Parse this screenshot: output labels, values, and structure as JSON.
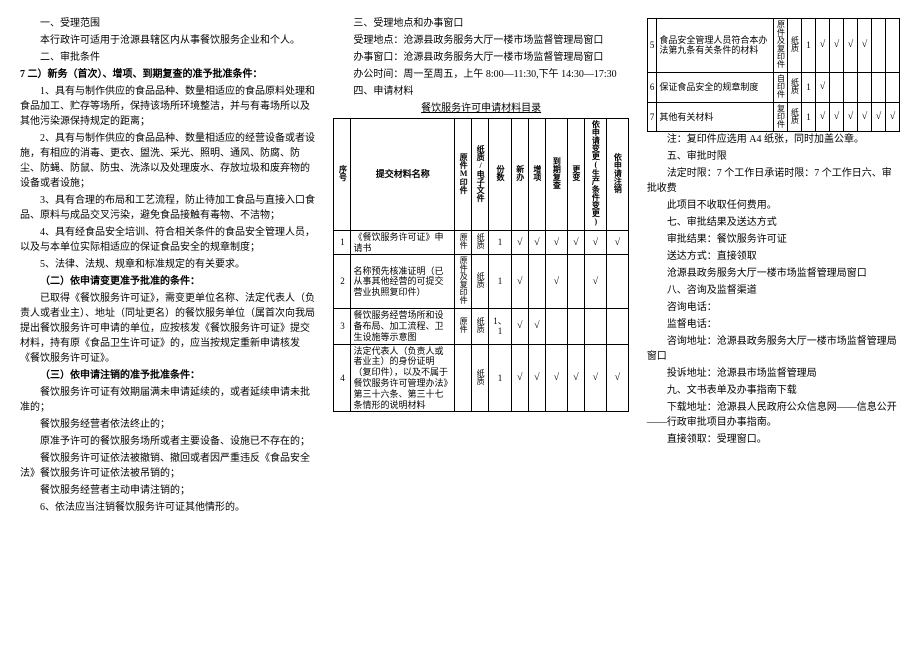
{
  "col1": {
    "h1": "一、受理范围",
    "p1": "本行政许可适用于沧源县辖区内从事餐饮服务企业和个人。",
    "h2": "二、审批条件",
    "h2b": "7 二）新务（首次）、增项、到期复查的准予批准条件：",
    "i1": "1、具有与制作供应的食品品种、数量相适应的食品原料处理和食品加工、贮存等场所，保持该场所环境整洁，并与有毒场所以及其他污染源保持规定的距离；",
    "i2": "2、具有与制作供应的食品品种、数量相适应的经营设备或者设施，有相应的消毒、更衣、盥洗、采光、照明、通风、防腐、防尘、防蝇、防鼠、防虫、洗涤以及处理废水、存放垃圾和废弃物的设备或者设施；",
    "i3": "3、具有合理的布局和工艺流程，防止待加工食品与直接入口食品、原料与成品交叉污染，避免食品接触有毒物、不洁物；",
    "i4": "4、具有经食品安全培训、符合相关条件的食品安全管理人员，以及与本单位实际相适应的保证食品安全的规章制度；",
    "i5": "5、法律、法规、规章和标准规定的有关要求。",
    "h3": "（二）依申请变更准予批准的条件：",
    "p2": "已取得《餐饮服务许可证》，需变更单位名称、法定代表人（负责人或者业主）、地址（同址更名）的餐饮服务单位（属首次向我局提出餐饮服务许可申请的单位，应按核发《餐饮服务许可证》提交材料，持有原《食品卫生许可证》的，应当按规定重新申请核发《餐饮服务许可证》。",
    "h4": "（三）依申请注销的准予批准条件：",
    "p3": "餐饮服务许可证有效期届满未申请延续的，或者延续申请未批准的；",
    "p4": "餐饮服务经营者依法终止的；",
    "p5": "原准予许可的餐饮服务场所或者主要设备、设施已不存在的；",
    "p6": "餐饮服务许可证依法被撤销、撤回或者因严重违反《食品安全法》餐饮服务许可证依法被吊销的；",
    "p7": "餐饮服务经营者主动申请注销的；",
    "p8": "6、依法应当注销餐饮服务许可证其他情形的。"
  },
  "col2": {
    "h1": "三、受理地点和办事窗口",
    "p1": "受理地点：沧源县政务服务大厅一楼市场监督管理局窗口",
    "p2": "办事窗口：沧源县政务服务大厅一楼市场监督管理局窗口",
    "p3": "办公时间：周一至周五，上午 8:00—11:30,下午 14:30—17:30",
    "h2": "四、申请材料",
    "tabletitle": "餐饮服务许可申请材料目录",
    "headers": {
      "seq": "序号",
      "name": "提交材料名称",
      "orig": "原件M印件",
      "paper": "纸质/电子文件",
      "copies": "份数",
      "new": "新办",
      "add": "增项",
      "renew": "到期复查",
      "change": "更变",
      "bychange": "依申请变更(生产条件变更)",
      "cancel": "依申请注销"
    },
    "rows": [
      {
        "n": "1",
        "name": "《餐饮服务许可证》申请书",
        "o": "原件",
        "p": "纸质",
        "c": "1",
        "v": [
          "√",
          "√",
          "√",
          "√",
          "√",
          "√"
        ]
      },
      {
        "n": "2",
        "name": "名称预先核准证明（已从事其他经营的可提交营业执照复印件）",
        "o": "原件及复印件",
        "p": "纸质",
        "c": "1",
        "v": [
          "√",
          "",
          "√",
          "",
          "√",
          ""
        ]
      },
      {
        "n": "3",
        "name": "餐饮服务经营场所和设备布局、加工流程、卫生设施等示意图",
        "o": "原件",
        "p": "纸质",
        "c": "1、1",
        "v": [
          "√",
          "√",
          "",
          "",
          "",
          ""
        ]
      },
      {
        "n": "4",
        "name": "法定代表人（负责人或者业主）的身份证明（复印件），以及不属于餐饮服务许可管理办法》第三十六条、第三十七条情形的说明材料",
        "o": "",
        "p": "纸质",
        "c": "1",
        "v": [
          "√",
          "√",
          "√",
          "√",
          "√",
          "√"
        ]
      }
    ]
  },
  "col3": {
    "rows": [
      {
        "n": "5",
        "name": "食品安全管理人员符合本办法第九条有关条件的材料",
        "o": "原件及复印件",
        "p": "纸质",
        "c": "1",
        "v": [
          "√",
          "√",
          "√",
          "√",
          "",
          ""
        ]
      },
      {
        "n": "6",
        "name": "保证食品安全的规章制度",
        "o": "自印件",
        "p": "纸质",
        "c": "1",
        "v": [
          "√",
          "",
          "",
          "",
          "",
          ""
        ]
      },
      {
        "n": "7",
        "name": "其他有关材料",
        "o": "复印件",
        "p": "纸质",
        "c": "1",
        "v": [
          "√",
          "√",
          "√",
          "√",
          "√",
          "√"
        ]
      }
    ],
    "note": "注：复印件应选用 A4 纸张，同时加盖公章。",
    "h5": "五、审批时限",
    "p5a": "法定时限：7 个工作日承诺时限：7 个工作日六、审批收费",
    "p5b": "此项目不收取任何费用。",
    "h7": "七、审批结果及送达方式",
    "p7a": "审批结果：餐饮服务许可证",
    "p7b": "送达方式：直接领取",
    "p7c": "沧源县政务服务大厅一楼市场监督管理局窗口",
    "h8": "八、咨询及监督渠道",
    "p8a": "咨询地址：沧源县政务服务大厅一楼市场监督管理局窗口",
    "p8alabel": "咨询电话：",
    "p8blabel": "监督电话：",
    "p8c": "投诉地址：沧源县市场监督管理局",
    "h9": "九、文书表单及办事指南下载",
    "p9a": "下载地址：沧源县人民政府公众信息网――信息公开――行政审批项目办事指南。",
    "p10": "直接领取：受理窗口。"
  },
  "check": "√"
}
